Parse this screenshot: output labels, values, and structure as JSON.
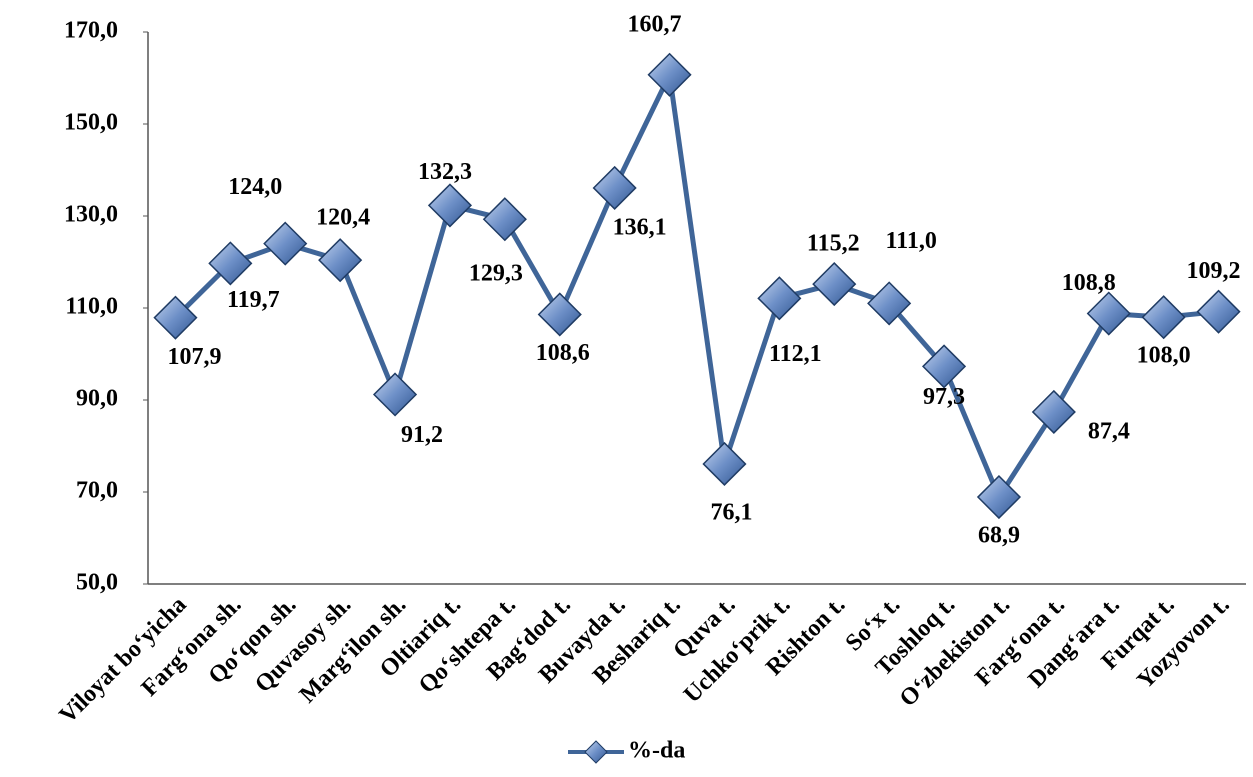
{
  "chart_data": {
    "type": "line",
    "categories": [
      "Viloyat bo‘yicha",
      "Farg‘ona sh.",
      "Qo‘qon sh.",
      "Quvasoy sh.",
      "Marg‘ilon sh.",
      "Oltiariq t.",
      "Qo‘shtepa t.",
      "Bag‘dod t.",
      "Buvayda t.",
      "Beshariq t.",
      "Quva t.",
      "Uchko‘prik t.",
      "Rishton t.",
      "So‘x t.",
      "Toshloq t.",
      "O‘zbekiston t.",
      "Farg‘ona t.",
      "Dang‘ara t.",
      "Furqat t.",
      "Yozyovon t."
    ],
    "series": [
      {
        "name": "%-da",
        "color": "#3f6598",
        "values": [
          107.9,
          119.7,
          124.0,
          120.4,
          91.2,
          132.3,
          129.3,
          108.6,
          136.1,
          160.7,
          76.1,
          112.1,
          115.2,
          111.0,
          97.3,
          68.9,
          87.4,
          108.8,
          108.0,
          109.2
        ],
        "value_labels": [
          "107,9",
          "119,7",
          "124,0",
          "120,4",
          "91,2",
          "132,3",
          "129,3",
          "108,6",
          "136,1",
          "160,7",
          "76,1",
          "112,1",
          "115,2",
          "111,0",
          "97,3",
          "68,9",
          "87,4",
          "108,8",
          "108,0",
          "109,2"
        ]
      }
    ],
    "ylim": [
      50,
      170
    ],
    "yticks": [
      {
        "value": 50,
        "label": "50,0"
      },
      {
        "value": 70,
        "label": "70,0"
      },
      {
        "value": 90,
        "label": "90,0"
      },
      {
        "value": 110,
        "label": "110,0"
      },
      {
        "value": 130,
        "label": "130,0"
      },
      {
        "value": 150,
        "label": "150,0"
      },
      {
        "value": 170,
        "label": "170,0"
      }
    ],
    "grid": false
  }
}
